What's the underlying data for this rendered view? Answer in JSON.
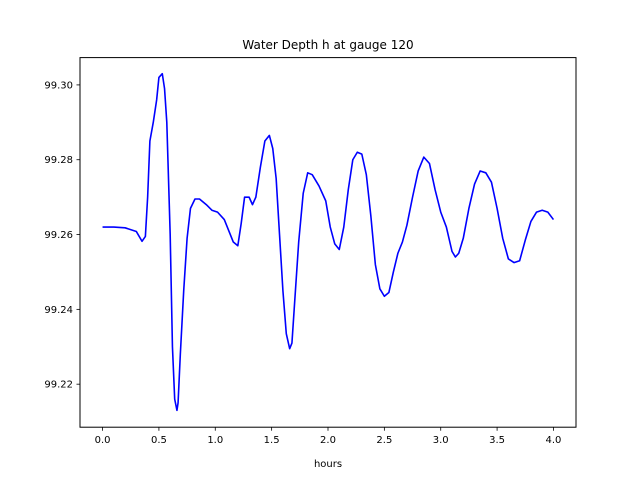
{
  "chart_data": {
    "type": "line",
    "title": "Water Depth h at gauge 120",
    "xlabel": "hours",
    "ylabel": "",
    "xlim": [
      -0.2,
      4.2
    ],
    "ylim": [
      99.2085,
      99.3073
    ],
    "xticks": [
      0.0,
      0.5,
      1.0,
      1.5,
      2.0,
      2.5,
      3.0,
      3.5,
      4.0
    ],
    "xtick_labels": [
      "0.0",
      "0.5",
      "1.0",
      "1.5",
      "2.0",
      "2.5",
      "3.0",
      "3.5",
      "4.0"
    ],
    "yticks": [
      99.22,
      99.24,
      99.26,
      99.28,
      99.3
    ],
    "ytick_labels": [
      "99.22",
      "99.24",
      "99.26",
      "99.28",
      "99.30"
    ],
    "grid": false,
    "series": [
      {
        "color": "#0000ff",
        "x": [
          0.0,
          0.1,
          0.2,
          0.3,
          0.35,
          0.38,
          0.4,
          0.42,
          0.45,
          0.48,
          0.5,
          0.53,
          0.55,
          0.57,
          0.58,
          0.6,
          0.62,
          0.64,
          0.66,
          0.67,
          0.69,
          0.72,
          0.75,
          0.78,
          0.82,
          0.86,
          0.92,
          0.97,
          1.02,
          1.08,
          1.12,
          1.16,
          1.2,
          1.23,
          1.26,
          1.3,
          1.33,
          1.36,
          1.4,
          1.44,
          1.48,
          1.51,
          1.54,
          1.57,
          1.6,
          1.63,
          1.66,
          1.68,
          1.7,
          1.74,
          1.78,
          1.82,
          1.86,
          1.92,
          1.98,
          2.02,
          2.06,
          2.1,
          2.14,
          2.18,
          2.22,
          2.26,
          2.3,
          2.34,
          2.38,
          2.42,
          2.46,
          2.5,
          2.54,
          2.58,
          2.62,
          2.66,
          2.7,
          2.75,
          2.8,
          2.85,
          2.9,
          2.95,
          3.0,
          3.05,
          3.1,
          3.13,
          3.16,
          3.2,
          3.25,
          3.3,
          3.35,
          3.4,
          3.45,
          3.5,
          3.55,
          3.6,
          3.65,
          3.7,
          3.75,
          3.8,
          3.85,
          3.9,
          3.95,
          4.0
        ],
        "y": [
          99.262,
          99.262,
          99.2618,
          99.2608,
          99.2582,
          99.2595,
          99.27,
          99.285,
          99.29,
          99.296,
          99.302,
          99.303,
          99.299,
          99.29,
          99.28,
          99.26,
          99.23,
          99.216,
          99.213,
          99.215,
          99.228,
          99.245,
          99.259,
          99.267,
          99.2695,
          99.2695,
          99.268,
          99.2665,
          99.266,
          99.264,
          99.261,
          99.258,
          99.257,
          99.263,
          99.27,
          99.27,
          99.268,
          99.27,
          99.278,
          99.285,
          99.2865,
          99.283,
          99.275,
          99.26,
          99.245,
          99.2335,
          99.2295,
          99.231,
          99.24,
          99.258,
          99.271,
          99.2765,
          99.276,
          99.273,
          99.269,
          99.262,
          99.2575,
          99.256,
          99.262,
          99.272,
          99.28,
          99.282,
          99.2815,
          99.276,
          99.265,
          99.252,
          99.2455,
          99.2435,
          99.2445,
          99.25,
          99.255,
          99.258,
          99.2625,
          99.27,
          99.277,
          99.2807,
          99.279,
          99.272,
          99.266,
          99.262,
          99.2555,
          99.254,
          99.255,
          99.259,
          99.267,
          99.2735,
          99.277,
          99.2765,
          99.274,
          99.267,
          99.259,
          99.2535,
          99.2525,
          99.253,
          99.2585,
          99.2635,
          99.266,
          99.2665,
          99.266,
          99.264
        ]
      }
    ]
  }
}
